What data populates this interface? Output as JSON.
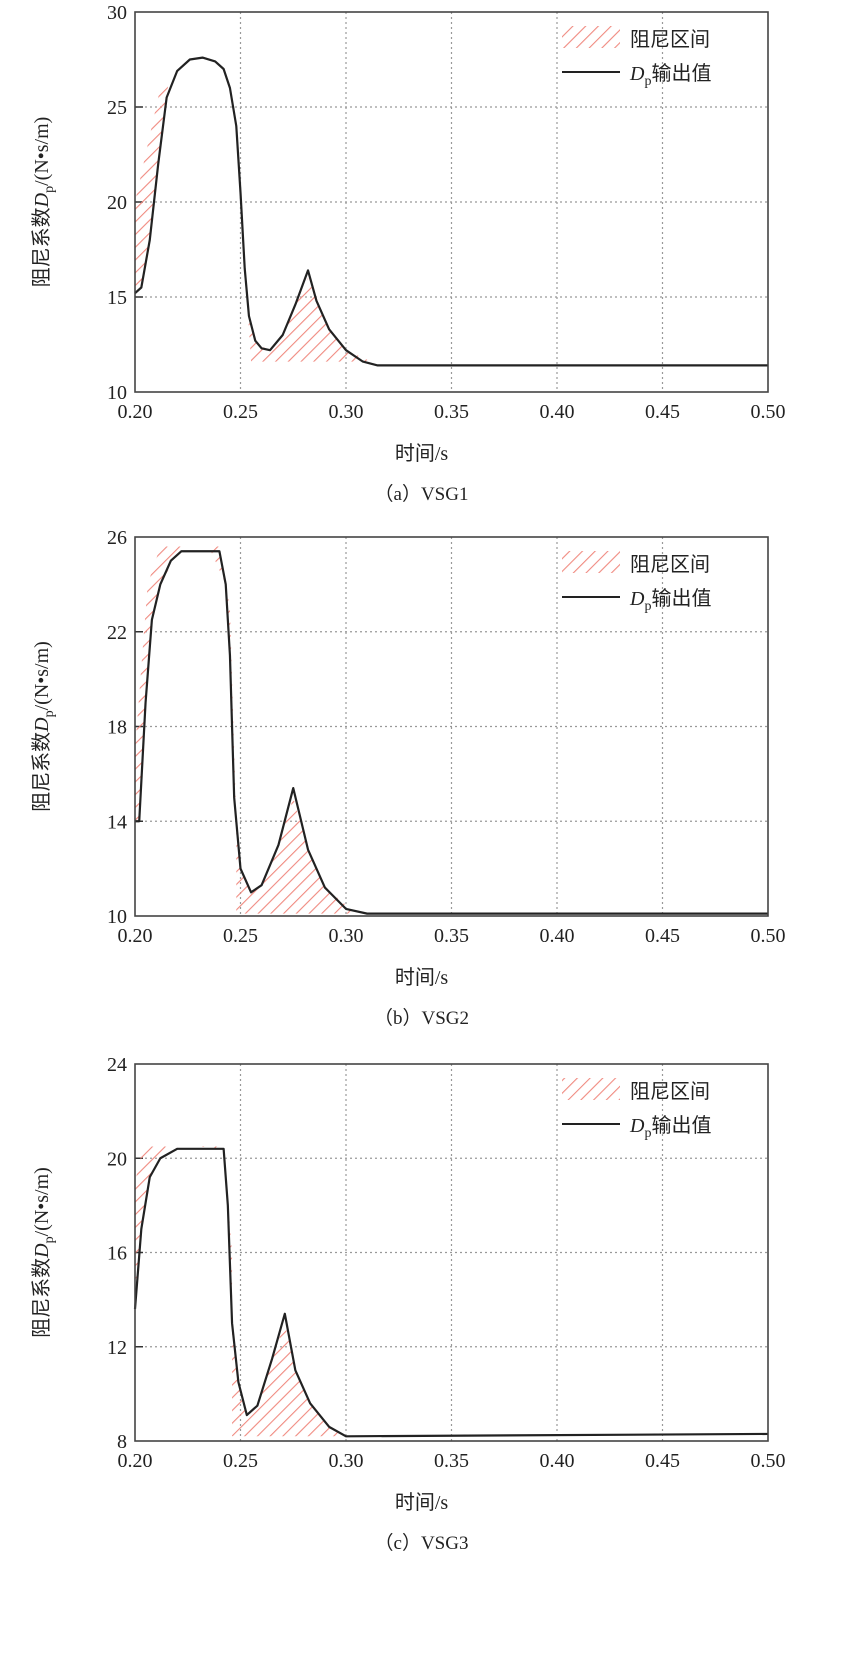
{
  "chart_data": [
    {
      "type": "line",
      "caption": "（a）VSG1",
      "xlabel": "时间/s",
      "ylabel": "阻尼系数Dp/(N•s/m)",
      "ylabel_parts": {
        "pre": "阻尼系数",
        "sym": "D",
        "sub": "p",
        "post": "/(N•s/m)"
      },
      "xlim": [
        0.2,
        0.5
      ],
      "ylim": [
        10,
        30
      ],
      "xticks": [
        "0.20",
        "0.25",
        "0.30",
        "0.35",
        "0.40",
        "0.45",
        "0.50"
      ],
      "yticks": [
        "10",
        "15",
        "20",
        "25",
        "30"
      ],
      "grid": true,
      "legend_position": "top-right",
      "legend": {
        "interval": "阻尼区间",
        "output_sym": "D",
        "output_sub": "p",
        "output_text": "输出值"
      },
      "colors": {
        "line": "#222222",
        "hatch": "#f08a80",
        "grid": "#999999"
      },
      "series": [
        {
          "name": "Dp输出值",
          "x": [
            0.2,
            0.203,
            0.207,
            0.211,
            0.215,
            0.22,
            0.226,
            0.232,
            0.238,
            0.242,
            0.245,
            0.248,
            0.25,
            0.252,
            0.254,
            0.257,
            0.26,
            0.264,
            0.27,
            0.276,
            0.282,
            0.286,
            0.292,
            0.3,
            0.308,
            0.315,
            0.5
          ],
          "y": [
            15.2,
            15.5,
            18.0,
            22.0,
            25.5,
            26.9,
            27.5,
            27.6,
            27.4,
            27.0,
            26.0,
            24.0,
            20.5,
            16.5,
            14.0,
            12.7,
            12.3,
            12.2,
            13.0,
            14.6,
            16.4,
            14.8,
            13.3,
            12.2,
            11.6,
            11.4,
            11.4
          ]
        }
      ],
      "damping_interval": [
        [
          [
            0.2,
            15.3
          ],
          [
            0.2,
            20.0
          ],
          [
            0.212,
            26.0
          ],
          [
            0.216,
            26.4
          ],
          [
            0.211,
            22.0
          ],
          [
            0.207,
            18.0
          ],
          [
            0.203,
            15.5
          ]
        ],
        [
          [
            0.243,
            26.8
          ],
          [
            0.247,
            25.0
          ],
          [
            0.25,
            21.0
          ],
          [
            0.253,
            15.0
          ],
          [
            0.255,
            11.6
          ],
          [
            0.312,
            11.6
          ],
          [
            0.3,
            12.2
          ],
          [
            0.292,
            13.3
          ],
          [
            0.286,
            14.8
          ],
          [
            0.282,
            16.0
          ],
          [
            0.276,
            14.6
          ],
          [
            0.27,
            13.0
          ],
          [
            0.264,
            12.2
          ],
          [
            0.258,
            12.5
          ],
          [
            0.254,
            14.0
          ],
          [
            0.251,
            19.0
          ],
          [
            0.248,
            24.0
          ],
          [
            0.245,
            26.0
          ]
        ]
      ]
    },
    {
      "type": "line",
      "caption": "（b）VSG2",
      "xlabel": "时间/s",
      "ylabel": "阻尼系数Dp/(N•s/m)",
      "ylabel_parts": {
        "pre": "阻尼系数",
        "sym": "D",
        "sub": "p",
        "post": "/(N•s/m)"
      },
      "xlim": [
        0.2,
        0.5
      ],
      "ylim": [
        10,
        26
      ],
      "xticks": [
        "0.20",
        "0.25",
        "0.30",
        "0.35",
        "0.40",
        "0.45",
        "0.50"
      ],
      "yticks": [
        "10",
        "14",
        "18",
        "22",
        "26"
      ],
      "grid": true,
      "legend_position": "top-right",
      "legend": {
        "interval": "阻尼区间",
        "output_sym": "D",
        "output_sub": "p",
        "output_text": "输出值"
      },
      "colors": {
        "line": "#222222",
        "hatch": "#f08a80",
        "grid": "#999999"
      },
      "series": [
        {
          "name": "Dp输出值",
          "x": [
            0.2,
            0.202,
            0.205,
            0.208,
            0.212,
            0.217,
            0.222,
            0.24,
            0.243,
            0.245,
            0.247,
            0.25,
            0.255,
            0.26,
            0.268,
            0.275,
            0.282,
            0.29,
            0.3,
            0.31,
            0.5
          ],
          "y": [
            14.0,
            14.0,
            19.0,
            22.5,
            24.0,
            25.0,
            25.4,
            25.4,
            24.0,
            21.0,
            15.0,
            12.0,
            11.0,
            11.3,
            13.0,
            15.4,
            12.8,
            11.2,
            10.3,
            10.1,
            10.1
          ]
        }
      ],
      "damping_interval": [
        [
          [
            0.2,
            14.0
          ],
          [
            0.2,
            17.0
          ],
          [
            0.206,
            24.0
          ],
          [
            0.212,
            25.6
          ],
          [
            0.222,
            25.6
          ],
          [
            0.212,
            24.0
          ],
          [
            0.208,
            22.5
          ],
          [
            0.205,
            19.0
          ],
          [
            0.202,
            14.0
          ]
        ],
        [
          [
            0.235,
            25.6
          ],
          [
            0.24,
            25.6
          ],
          [
            0.245,
            23.0
          ],
          [
            0.248,
            14.0
          ],
          [
            0.248,
            10.1
          ],
          [
            0.305,
            10.1
          ],
          [
            0.29,
            11.2
          ],
          [
            0.282,
            12.8
          ],
          [
            0.275,
            15.0
          ],
          [
            0.268,
            13.0
          ],
          [
            0.26,
            11.3
          ],
          [
            0.255,
            11.0
          ],
          [
            0.25,
            12.0
          ],
          [
            0.247,
            15.0
          ],
          [
            0.245,
            21.0
          ],
          [
            0.243,
            24.0
          ]
        ]
      ]
    },
    {
      "type": "line",
      "caption": "（c）VSG3",
      "xlabel": "时间/s",
      "ylabel": "阻尼系数Dp/(N•s/m)",
      "ylabel_parts": {
        "pre": "阻尼系数",
        "sym": "D",
        "sub": "p",
        "post": "/(N•s/m)"
      },
      "xlim": [
        0.2,
        0.5
      ],
      "ylim": [
        8,
        24
      ],
      "xticks": [
        "0.20",
        "0.25",
        "0.30",
        "0.35",
        "0.40",
        "0.45",
        "0.50"
      ],
      "yticks": [
        "8",
        "12",
        "16",
        "20",
        "24"
      ],
      "grid": true,
      "legend_position": "top-right",
      "legend": {
        "interval": "阻尼区间",
        "output_sym": "D",
        "output_sub": "p",
        "output_text": "输出值"
      },
      "colors": {
        "line": "#222222",
        "hatch": "#f08a80",
        "grid": "#999999"
      },
      "series": [
        {
          "name": "Dp输出值",
          "x": [
            0.2,
            0.203,
            0.207,
            0.212,
            0.22,
            0.242,
            0.244,
            0.246,
            0.249,
            0.253,
            0.258,
            0.265,
            0.271,
            0.276,
            0.283,
            0.292,
            0.3,
            0.5
          ],
          "y": [
            13.6,
            17.0,
            19.2,
            20.0,
            20.4,
            20.4,
            18.0,
            13.0,
            10.5,
            9.1,
            9.5,
            11.5,
            13.4,
            11.0,
            9.6,
            8.6,
            8.2,
            8.3
          ]
        }
      ],
      "damping_interval": [
        [
          [
            0.2,
            13.6
          ],
          [
            0.2,
            19.0
          ],
          [
            0.204,
            20.5
          ],
          [
            0.22,
            20.5
          ],
          [
            0.212,
            20.0
          ],
          [
            0.207,
            19.2
          ],
          [
            0.203,
            17.0
          ]
        ],
        [
          [
            0.23,
            20.5
          ],
          [
            0.242,
            20.5
          ],
          [
            0.246,
            16.0
          ],
          [
            0.246,
            8.2
          ],
          [
            0.3,
            8.2
          ],
          [
            0.292,
            8.6
          ],
          [
            0.283,
            9.6
          ],
          [
            0.276,
            11.0
          ],
          [
            0.271,
            13.0
          ],
          [
            0.265,
            11.5
          ],
          [
            0.258,
            9.5
          ],
          [
            0.253,
            9.1
          ],
          [
            0.249,
            10.5
          ],
          [
            0.246,
            13.0
          ],
          [
            0.244,
            18.0
          ],
          [
            0.242,
            20.4
          ]
        ]
      ]
    }
  ]
}
